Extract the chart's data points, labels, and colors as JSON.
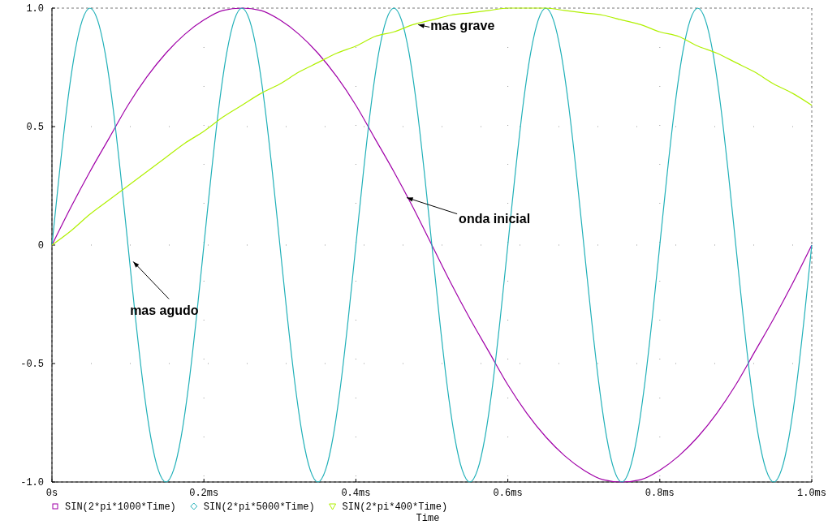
{
  "chart_data": {
    "type": "line",
    "xlabel": "Time",
    "x": [
      0,
      0.025,
      0.05,
      0.075,
      0.1,
      0.125,
      0.15,
      0.175,
      0.2,
      0.225,
      0.25,
      0.275,
      0.3,
      0.325,
      0.35,
      0.375,
      0.4,
      0.425,
      0.45,
      0.475,
      0.5,
      0.525,
      0.55,
      0.575,
      0.6,
      0.625,
      0.65,
      0.675,
      0.7,
      0.725,
      0.75,
      0.775,
      0.8,
      0.825,
      0.85,
      0.875,
      0.9,
      0.925,
      0.95,
      0.975,
      1.0
    ],
    "series": [
      {
        "name": "SIN(2*pi*1000*Time)",
        "color": "#a000a8",
        "values": [
          0,
          0.16,
          0.31,
          0.45,
          0.59,
          0.71,
          0.81,
          0.89,
          0.95,
          0.99,
          1,
          0.99,
          0.95,
          0.89,
          0.81,
          0.71,
          0.59,
          0.45,
          0.31,
          0.16,
          0,
          -0.16,
          -0.31,
          -0.45,
          -0.59,
          -0.71,
          -0.81,
          -0.89,
          -0.95,
          -0.99,
          -1,
          -0.99,
          -0.95,
          -0.89,
          -0.81,
          -0.71,
          -0.59,
          -0.45,
          -0.31,
          -0.16,
          0
        ]
      },
      {
        "name": "SIN(2*pi*5000*Time)",
        "color": "#20b0b8",
        "x": [
          0,
          0.01,
          0.02,
          0.03,
          0.04,
          0.05,
          0.06,
          0.07,
          0.08,
          0.09,
          0.1,
          0.11,
          0.12,
          0.13,
          0.14,
          0.15,
          0.16,
          0.17,
          0.18,
          0.19,
          0.2,
          0.21,
          0.22,
          0.23,
          0.24,
          0.25,
          0.26,
          0.27,
          0.28,
          0.29,
          0.3,
          0.31,
          0.32,
          0.33,
          0.34,
          0.35,
          0.36,
          0.37,
          0.38,
          0.39,
          0.4,
          0.41,
          0.42,
          0.43,
          0.44,
          0.45,
          0.46,
          0.47,
          0.48,
          0.49,
          0.5,
          0.51,
          0.52,
          0.53,
          0.54,
          0.55,
          0.56,
          0.57,
          0.58,
          0.59,
          0.6,
          0.61,
          0.62,
          0.63,
          0.64,
          0.65,
          0.66,
          0.67,
          0.68,
          0.69,
          0.7,
          0.71,
          0.72,
          0.73,
          0.74,
          0.75,
          0.76,
          0.77,
          0.78,
          0.79,
          0.8,
          0.81,
          0.82,
          0.83,
          0.84,
          0.85,
          0.86,
          0.87,
          0.88,
          0.89,
          0.9,
          0.91,
          0.92,
          0.93,
          0.94,
          0.95,
          0.96,
          0.97,
          0.98,
          0.99,
          1.0
        ],
        "values": [
          0,
          0.31,
          0.59,
          0.81,
          0.95,
          1,
          0.95,
          0.81,
          0.59,
          0.31,
          0,
          -0.31,
          -0.59,
          -0.81,
          -0.95,
          -1,
          -0.95,
          -0.81,
          -0.59,
          -0.31,
          0,
          0.31,
          0.59,
          0.81,
          0.95,
          1,
          0.95,
          0.81,
          0.59,
          0.31,
          0,
          -0.31,
          -0.59,
          -0.81,
          -0.95,
          -1,
          -0.95,
          -0.81,
          -0.59,
          -0.31,
          0,
          0.31,
          0.59,
          0.81,
          0.95,
          1,
          0.95,
          0.81,
          0.59,
          0.31,
          0,
          -0.31,
          -0.59,
          -0.81,
          -0.95,
          -1,
          -0.95,
          -0.81,
          -0.59,
          -0.31,
          0,
          0.31,
          0.59,
          0.81,
          0.95,
          1,
          0.95,
          0.81,
          0.59,
          0.31,
          0,
          -0.31,
          -0.59,
          -0.81,
          -0.95,
          -1,
          -0.95,
          -0.81,
          -0.59,
          -0.31,
          0,
          0.31,
          0.59,
          0.81,
          0.95,
          1,
          0.95,
          0.81,
          0.59,
          0.31,
          0,
          -0.31,
          -0.59,
          -0.81,
          -0.95,
          -1,
          -0.95,
          -0.81,
          -0.59,
          -0.31,
          0
        ]
      },
      {
        "name": "SIN(2*pi*400*Time)",
        "color": "#b0f000",
        "values": [
          0,
          0.06,
          0.13,
          0.19,
          0.25,
          0.31,
          0.37,
          0.43,
          0.48,
          0.54,
          0.59,
          0.64,
          0.68,
          0.73,
          0.77,
          0.81,
          0.84,
          0.88,
          0.9,
          0.93,
          0.95,
          0.97,
          0.98,
          0.99,
          1,
          1,
          1,
          0.99,
          0.98,
          0.97,
          0.95,
          0.93,
          0.9,
          0.88,
          0.84,
          0.81,
          0.77,
          0.73,
          0.68,
          0.64,
          0.59
        ]
      }
    ],
    "xlim": [
      0,
      1.0
    ],
    "xticks": [
      {
        "value": 0,
        "label": "0s"
      },
      {
        "value": 0.2,
        "label": "0.2ms"
      },
      {
        "value": 0.4,
        "label": "0.4ms"
      },
      {
        "value": 0.6,
        "label": "0.6ms"
      },
      {
        "value": 0.8,
        "label": "0.8ms"
      },
      {
        "value": 1.0,
        "label": "1.0ms"
      }
    ],
    "ylim": [
      -1,
      1
    ],
    "yticks": [
      {
        "value": -1,
        "label": "-1.0"
      },
      -0.5,
      0,
      0.5,
      {
        "value": 1,
        "label": "1.0"
      }
    ],
    "grid": true,
    "legend": "bottom",
    "line_style": "solid",
    "annotations": [
      {
        "text": "mas grave",
        "x": 0.482,
        "y": 0.93
      },
      {
        "text": "onda inicial",
        "x": 0.467,
        "y": 0.2
      },
      {
        "text": "mas agudo",
        "x": 0.107,
        "y": -0.07
      }
    ]
  }
}
